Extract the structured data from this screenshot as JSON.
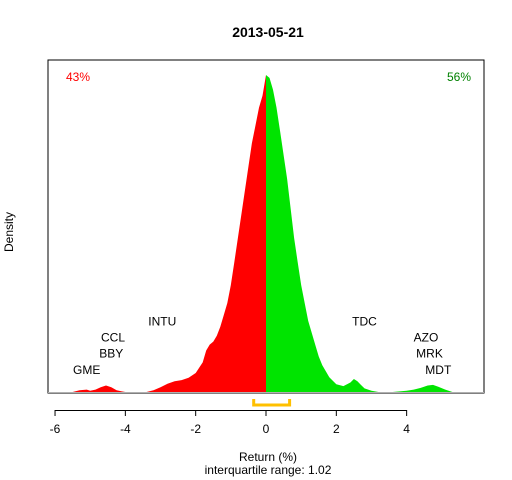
{
  "chart_data": {
    "type": "area",
    "title": "2013-05-21",
    "xlabel": "Return (%)",
    "ylabel": "Density",
    "subtitle": "interquartile range: 1.02",
    "xlim": [
      -6.2,
      6.2
    ],
    "ylim": [
      0,
      0.54
    ],
    "x_ticks": [
      -6,
      -4,
      -2,
      0,
      2,
      4
    ],
    "x_tick_labels": [
      "-6",
      "-4",
      "-2",
      "0",
      "2",
      "4"
    ],
    "split_at": 0,
    "pct_negative": "43%",
    "pct_positive": "56%",
    "colors": {
      "negative": "#ff0000",
      "positive": "#00e400",
      "iqr_bracket": "#ffc000"
    },
    "interquartile_range": {
      "from": -0.35,
      "to": 0.67
    },
    "density": {
      "x": [
        -5.5,
        -5.3,
        -5.1,
        -5.0,
        -4.85,
        -4.7,
        -4.55,
        -4.4,
        -4.25,
        -4.1,
        -4.0,
        -3.8,
        -3.6,
        -3.4,
        -3.2,
        -3.0,
        -2.8,
        -2.6,
        -2.4,
        -2.2,
        -2.0,
        -1.8,
        -1.7,
        -1.6,
        -1.5,
        -1.4,
        -1.3,
        -1.2,
        -1.1,
        -1.0,
        -0.9,
        -0.8,
        -0.7,
        -0.6,
        -0.5,
        -0.4,
        -0.3,
        -0.2,
        -0.1,
        0.0,
        0.1,
        0.2,
        0.3,
        0.4,
        0.5,
        0.6,
        0.7,
        0.8,
        0.9,
        1.0,
        1.1,
        1.2,
        1.3,
        1.4,
        1.5,
        1.6,
        1.8,
        2.0,
        2.2,
        2.4,
        2.5,
        2.6,
        2.7,
        2.8,
        3.0,
        3.2,
        3.4,
        3.6,
        3.8,
        4.0,
        4.2,
        4.4,
        4.6,
        4.75,
        4.9,
        5.1,
        5.3
      ],
      "y": [
        0.0,
        0.003,
        0.004,
        0.002,
        0.004,
        0.008,
        0.011,
        0.008,
        0.003,
        0.001,
        0.0,
        0.0,
        0.0,
        0.0,
        0.003,
        0.008,
        0.014,
        0.018,
        0.02,
        0.024,
        0.032,
        0.05,
        0.07,
        0.08,
        0.085,
        0.095,
        0.11,
        0.13,
        0.15,
        0.18,
        0.22,
        0.26,
        0.3,
        0.34,
        0.38,
        0.42,
        0.45,
        0.48,
        0.5,
        0.535,
        0.53,
        0.51,
        0.48,
        0.44,
        0.4,
        0.36,
        0.31,
        0.26,
        0.22,
        0.18,
        0.15,
        0.12,
        0.1,
        0.08,
        0.06,
        0.045,
        0.025,
        0.013,
        0.01,
        0.016,
        0.022,
        0.018,
        0.012,
        0.006,
        0.002,
        0.0,
        0.0,
        0.0,
        0.001,
        0.002,
        0.004,
        0.007,
        0.011,
        0.012,
        0.009,
        0.004,
        0.0
      ]
    },
    "annotations": [
      {
        "label": "GME",
        "x": -5.1,
        "level": 0.03
      },
      {
        "label": "BBY",
        "x": -4.4,
        "level": 0.058
      },
      {
        "label": "CCL",
        "x": -4.35,
        "level": 0.085
      },
      {
        "label": "INTU",
        "x": -2.95,
        "level": 0.112
      },
      {
        "label": "TDC",
        "x": 2.8,
        "level": 0.112
      },
      {
        "label": "AZO",
        "x": 4.55,
        "level": 0.085
      },
      {
        "label": "MRK",
        "x": 4.65,
        "level": 0.058
      },
      {
        "label": "MDT",
        "x": 4.9,
        "level": 0.03
      }
    ]
  }
}
